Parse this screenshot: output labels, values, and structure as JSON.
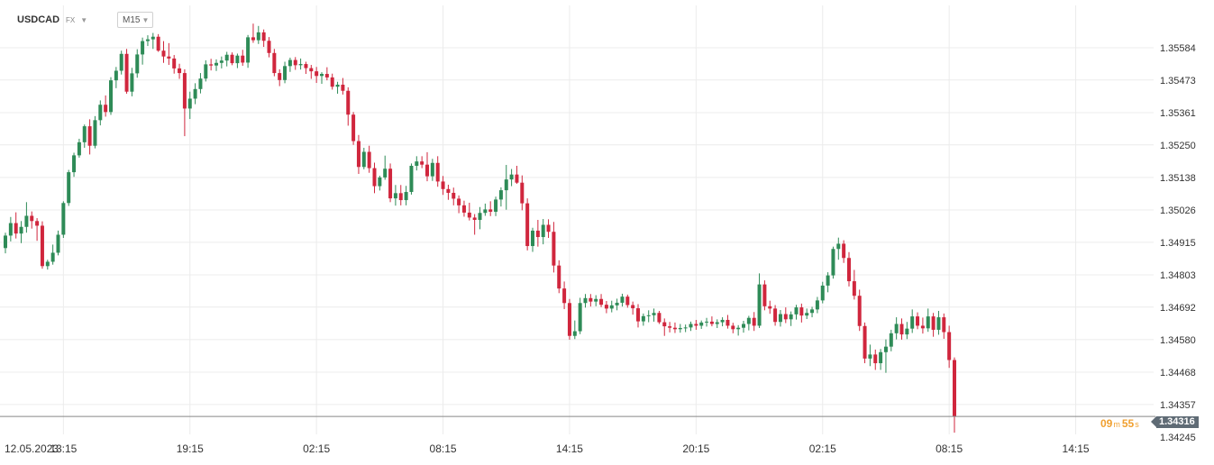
{
  "header": {
    "symbol": "USDCAD",
    "market": "FX",
    "timeframe": "M15"
  },
  "timer": {
    "minutes": "09",
    "minutes_unit": "m",
    "seconds": "55",
    "seconds_unit": "s"
  },
  "current_price_label": "1.34316",
  "colors": {
    "up": "#2e8b57",
    "down": "#d0263d",
    "grid": "#ececec",
    "axis_text": "#333333",
    "price_line": "#888888"
  },
  "chart_data": {
    "type": "candlestick",
    "title": "",
    "xlabel": "",
    "ylabel": "",
    "ylim": [
      1.3421,
      1.3566
    ],
    "y_ticks": [
      "1.35584",
      "1.35473",
      "1.35361",
      "1.35250",
      "1.35138",
      "1.35026",
      "1.34915",
      "1.34803",
      "1.34692",
      "1.34580",
      "1.34468",
      "1.34357",
      "1.34245"
    ],
    "x_ticks": [
      "12.05.2023",
      "13:15",
      "19:15",
      "02:15",
      "08:15",
      "14:15",
      "20:15",
      "02:15",
      "08:15",
      "14:15"
    ],
    "x_tick_index": [
      0,
      11,
      35,
      59,
      83,
      107,
      131,
      155,
      179,
      203
    ],
    "grid": true,
    "current_price": 1.34316,
    "candles": [
      [
        1.34895,
        1.34948,
        1.34877,
        1.34938
      ],
      [
        1.34938,
        1.35002,
        1.34918,
        1.34981
      ],
      [
        1.34981,
        1.35018,
        1.34928,
        1.34945
      ],
      [
        1.34945,
        1.34988,
        1.34912,
        1.34968
      ],
      [
        1.34968,
        1.35053,
        1.34948,
        1.35006
      ],
      [
        1.35006,
        1.35021,
        1.34962,
        1.34988
      ],
      [
        1.34988,
        1.34998,
        1.3492,
        1.34972
      ],
      [
        1.34972,
        1.34987,
        1.34824,
        1.34833
      ],
      [
        1.34833,
        1.34855,
        1.34821,
        1.34848
      ],
      [
        1.34848,
        1.34907,
        1.34838,
        1.34879
      ],
      [
        1.34879,
        1.34955,
        1.3487,
        1.34941
      ],
      [
        1.34941,
        1.35056,
        1.3493,
        1.3505
      ],
      [
        1.3505,
        1.35164,
        1.3504,
        1.35156
      ],
      [
        1.35156,
        1.35223,
        1.3514,
        1.35214
      ],
      [
        1.35214,
        1.35271,
        1.35206,
        1.35259
      ],
      [
        1.35259,
        1.3532,
        1.3524,
        1.35314
      ],
      [
        1.35314,
        1.35338,
        1.35217,
        1.35247
      ],
      [
        1.35247,
        1.35349,
        1.35238,
        1.35335
      ],
      [
        1.35335,
        1.35403,
        1.35317,
        1.35388
      ],
      [
        1.35388,
        1.3542,
        1.35347,
        1.35363
      ],
      [
        1.35363,
        1.35483,
        1.35353,
        1.35472
      ],
      [
        1.35472,
        1.35518,
        1.35445,
        1.35505
      ],
      [
        1.35505,
        1.35574,
        1.35492,
        1.35563
      ],
      [
        1.35563,
        1.3558,
        1.35426,
        1.35433
      ],
      [
        1.35433,
        1.35515,
        1.35417,
        1.35496
      ],
      [
        1.35496,
        1.35579,
        1.35481,
        1.35561
      ],
      [
        1.35561,
        1.35619,
        1.35526,
        1.35607
      ],
      [
        1.35607,
        1.35627,
        1.3559,
        1.35613
      ],
      [
        1.35613,
        1.35635,
        1.3558,
        1.35622
      ],
      [
        1.35622,
        1.35631,
        1.3557,
        1.35574
      ],
      [
        1.35574,
        1.35607,
        1.35532,
        1.35554
      ],
      [
        1.35554,
        1.356,
        1.35525,
        1.35547
      ],
      [
        1.35547,
        1.35559,
        1.35495,
        1.35513
      ],
      [
        1.35513,
        1.35529,
        1.35477,
        1.35497
      ],
      [
        1.35497,
        1.3551,
        1.3528,
        1.35375
      ],
      [
        1.35375,
        1.35433,
        1.35339,
        1.35409
      ],
      [
        1.35409,
        1.35462,
        1.3539,
        1.35442
      ],
      [
        1.35442,
        1.35497,
        1.35427,
        1.35478
      ],
      [
        1.35478,
        1.35541,
        1.35468,
        1.35527
      ],
      [
        1.35527,
        1.35546,
        1.35506,
        1.35523
      ],
      [
        1.35523,
        1.35544,
        1.35504,
        1.35532
      ],
      [
        1.35532,
        1.35554,
        1.35513,
        1.3554
      ],
      [
        1.3554,
        1.3557,
        1.3552,
        1.3556
      ],
      [
        1.3556,
        1.35568,
        1.35524,
        1.35531
      ],
      [
        1.35531,
        1.35564,
        1.35514,
        1.35557
      ],
      [
        1.35557,
        1.35577,
        1.35522,
        1.35533
      ],
      [
        1.35533,
        1.35628,
        1.35515,
        1.3562
      ],
      [
        1.3562,
        1.35667,
        1.35601,
        1.3561
      ],
      [
        1.3561,
        1.35659,
        1.35597,
        1.35637
      ],
      [
        1.35637,
        1.35647,
        1.35587,
        1.35608
      ],
      [
        1.35608,
        1.35621,
        1.35551,
        1.35566
      ],
      [
        1.35566,
        1.3558,
        1.35486,
        1.35497
      ],
      [
        1.35497,
        1.3551,
        1.35452,
        1.35473
      ],
      [
        1.35473,
        1.35536,
        1.35462,
        1.35521
      ],
      [
        1.35521,
        1.3555,
        1.35501,
        1.35542
      ],
      [
        1.35542,
        1.35552,
        1.35508,
        1.35524
      ],
      [
        1.35524,
        1.35547,
        1.35509,
        1.35528
      ],
      [
        1.35528,
        1.35536,
        1.35494,
        1.35514
      ],
      [
        1.35514,
        1.35525,
        1.35477,
        1.35503
      ],
      [
        1.35503,
        1.35518,
        1.35463,
        1.35487
      ],
      [
        1.35487,
        1.355,
        1.3546,
        1.35494
      ],
      [
        1.35494,
        1.35517,
        1.35472,
        1.35482
      ],
      [
        1.35482,
        1.35495,
        1.3544,
        1.3545
      ],
      [
        1.3545,
        1.35467,
        1.35426,
        1.35457
      ],
      [
        1.35457,
        1.3548,
        1.35423,
        1.35436
      ],
      [
        1.35436,
        1.35448,
        1.35316,
        1.35354
      ],
      [
        1.35354,
        1.35363,
        1.3525,
        1.35263
      ],
      [
        1.35263,
        1.35284,
        1.3515,
        1.35174
      ],
      [
        1.35174,
        1.3524,
        1.35166,
        1.35226
      ],
      [
        1.35226,
        1.35247,
        1.35154,
        1.3517
      ],
      [
        1.3517,
        1.35189,
        1.35084,
        1.35108
      ],
      [
        1.35108,
        1.35144,
        1.35093,
        1.35138
      ],
      [
        1.35138,
        1.35213,
        1.3513,
        1.35168
      ],
      [
        1.35168,
        1.35186,
        1.35053,
        1.35066
      ],
      [
        1.35066,
        1.35112,
        1.35041,
        1.35084
      ],
      [
        1.35084,
        1.35112,
        1.35042,
        1.3506
      ],
      [
        1.3506,
        1.35109,
        1.35042,
        1.35088
      ],
      [
        1.35088,
        1.35186,
        1.35079,
        1.35178
      ],
      [
        1.35178,
        1.35211,
        1.35162,
        1.35193
      ],
      [
        1.35193,
        1.35211,
        1.3517,
        1.35182
      ],
      [
        1.35182,
        1.35225,
        1.35125,
        1.35142
      ],
      [
        1.35142,
        1.35202,
        1.35126,
        1.35188
      ],
      [
        1.35188,
        1.35211,
        1.35106,
        1.35124
      ],
      [
        1.35124,
        1.35143,
        1.35078,
        1.35098
      ],
      [
        1.35098,
        1.35113,
        1.35061,
        1.35085
      ],
      [
        1.35085,
        1.35103,
        1.35042,
        1.35065
      ],
      [
        1.35065,
        1.35076,
        1.35015,
        1.35042
      ],
      [
        1.35042,
        1.35058,
        1.35003,
        1.35017
      ],
      [
        1.35017,
        1.35051,
        1.3499,
        1.35
      ],
      [
        1.35,
        1.35012,
        1.34941,
        1.34992
      ],
      [
        1.34992,
        1.35036,
        1.3496,
        1.35016
      ],
      [
        1.35016,
        1.35048,
        1.35006,
        1.35028
      ],
      [
        1.35028,
        1.35056,
        1.35005,
        1.3502
      ],
      [
        1.3502,
        1.35072,
        1.35005,
        1.35062
      ],
      [
        1.35062,
        1.35104,
        1.35038,
        1.35094
      ],
      [
        1.35094,
        1.35181,
        1.35027,
        1.35131
      ],
      [
        1.35131,
        1.35167,
        1.35108,
        1.35148
      ],
      [
        1.35148,
        1.35178,
        1.35116,
        1.3512
      ],
      [
        1.3512,
        1.35145,
        1.35025,
        1.35049
      ],
      [
        1.35049,
        1.35066,
        1.34887,
        1.34902
      ],
      [
        1.34902,
        1.34965,
        1.34882,
        1.34955
      ],
      [
        1.34955,
        1.34992,
        1.349,
        1.34933
      ],
      [
        1.34933,
        1.34995,
        1.34908,
        1.34975
      ],
      [
        1.34975,
        1.34994,
        1.3493,
        1.34951
      ],
      [
        1.34951,
        1.34985,
        1.34811,
        1.34835
      ],
      [
        1.34835,
        1.34853,
        1.3474,
        1.34756
      ],
      [
        1.34756,
        1.3478,
        1.34685,
        1.34706
      ],
      [
        1.34706,
        1.3472,
        1.3458,
        1.34593
      ],
      [
        1.34593,
        1.34646,
        1.34582,
        1.34609
      ],
      [
        1.34609,
        1.34724,
        1.34599,
        1.34706
      ],
      [
        1.34706,
        1.34737,
        1.3469,
        1.34723
      ],
      [
        1.34723,
        1.34737,
        1.34694,
        1.34711
      ],
      [
        1.34711,
        1.34733,
        1.34695,
        1.3472
      ],
      [
        1.3472,
        1.34737,
        1.34692,
        1.347
      ],
      [
        1.347,
        1.34713,
        1.34671,
        1.34687
      ],
      [
        1.34687,
        1.34714,
        1.34674,
        1.34698
      ],
      [
        1.34698,
        1.34721,
        1.34681,
        1.34707
      ],
      [
        1.34707,
        1.34738,
        1.34694,
        1.34728
      ],
      [
        1.34728,
        1.34735,
        1.3469,
        1.34699
      ],
      [
        1.34699,
        1.34711,
        1.34666,
        1.34688
      ],
      [
        1.34688,
        1.34702,
        1.34622,
        1.34643
      ],
      [
        1.34643,
        1.3467,
        1.34628,
        1.34661
      ],
      [
        1.34661,
        1.34681,
        1.3464,
        1.34664
      ],
      [
        1.34664,
        1.34687,
        1.34642,
        1.34672
      ],
      [
        1.34672,
        1.34679,
        1.34634,
        1.3464
      ],
      [
        1.3464,
        1.34653,
        1.34593,
        1.34626
      ],
      [
        1.34626,
        1.34641,
        1.34605,
        1.34621
      ],
      [
        1.34621,
        1.34639,
        1.34603,
        1.34616
      ],
      [
        1.34616,
        1.34634,
        1.34604,
        1.3462
      ],
      [
        1.3462,
        1.34632,
        1.34606,
        1.34622
      ],
      [
        1.34622,
        1.34642,
        1.3461,
        1.34634
      ],
      [
        1.34634,
        1.34648,
        1.34614,
        1.34628
      ],
      [
        1.34628,
        1.34646,
        1.34617,
        1.34639
      ],
      [
        1.34639,
        1.34655,
        1.34625,
        1.34642
      ],
      [
        1.34642,
        1.3466,
        1.34626,
        1.34634
      ],
      [
        1.34634,
        1.3465,
        1.3462,
        1.3464
      ],
      [
        1.3464,
        1.34657,
        1.34626,
        1.34648
      ],
      [
        1.34648,
        1.34665,
        1.34618,
        1.34628
      ],
      [
        1.34628,
        1.34638,
        1.34602,
        1.34616
      ],
      [
        1.34616,
        1.3463,
        1.34594,
        1.34621
      ],
      [
        1.34621,
        1.34645,
        1.34604,
        1.34634
      ],
      [
        1.34634,
        1.34662,
        1.34612,
        1.34655
      ],
      [
        1.34655,
        1.34675,
        1.3461,
        1.34628
      ],
      [
        1.34628,
        1.34808,
        1.3462,
        1.3477
      ],
      [
        1.3477,
        1.34784,
        1.34681,
        1.34695
      ],
      [
        1.34695,
        1.34714,
        1.34669,
        1.34687
      ],
      [
        1.34687,
        1.34699,
        1.34628,
        1.34641
      ],
      [
        1.34641,
        1.34682,
        1.34625,
        1.34668
      ],
      [
        1.34668,
        1.34691,
        1.34637,
        1.3465
      ],
      [
        1.3465,
        1.34677,
        1.34627,
        1.34667
      ],
      [
        1.34667,
        1.347,
        1.34649,
        1.34691
      ],
      [
        1.34691,
        1.34704,
        1.34639,
        1.34663
      ],
      [
        1.34663,
        1.34687,
        1.34651,
        1.34672
      ],
      [
        1.34672,
        1.34693,
        1.34657,
        1.34684
      ],
      [
        1.34684,
        1.34727,
        1.34671,
        1.34715
      ],
      [
        1.34715,
        1.34779,
        1.34705,
        1.34766
      ],
      [
        1.34766,
        1.34812,
        1.34743,
        1.34801
      ],
      [
        1.34801,
        1.349,
        1.3479,
        1.34892
      ],
      [
        1.34892,
        1.34931,
        1.34855,
        1.3491
      ],
      [
        1.3491,
        1.34922,
        1.34844,
        1.34861
      ],
      [
        1.34861,
        1.34881,
        1.34763,
        1.34781
      ],
      [
        1.34781,
        1.3482,
        1.34718,
        1.34731
      ],
      [
        1.34731,
        1.34752,
        1.3461,
        1.34627
      ],
      [
        1.34627,
        1.34639,
        1.34499,
        1.34515
      ],
      [
        1.34515,
        1.34563,
        1.34489,
        1.34529
      ],
      [
        1.34529,
        1.34546,
        1.34476,
        1.34499
      ],
      [
        1.34499,
        1.34548,
        1.34476,
        1.34537
      ],
      [
        1.34537,
        1.34581,
        1.34466,
        1.34556
      ],
      [
        1.34556,
        1.34614,
        1.3454,
        1.34602
      ],
      [
        1.34602,
        1.34657,
        1.34581,
        1.34634
      ],
      [
        1.34634,
        1.34653,
        1.3458,
        1.34598
      ],
      [
        1.34598,
        1.34641,
        1.34582,
        1.34618
      ],
      [
        1.34618,
        1.34684,
        1.34603,
        1.3466
      ],
      [
        1.3466,
        1.34674,
        1.34616,
        1.34628
      ],
      [
        1.34628,
        1.34656,
        1.34601,
        1.34619
      ],
      [
        1.34619,
        1.34687,
        1.34607,
        1.3466
      ],
      [
        1.3466,
        1.34672,
        1.3459,
        1.34614
      ],
      [
        1.34614,
        1.34679,
        1.34597,
        1.34657
      ],
      [
        1.34657,
        1.3467,
        1.34583,
        1.34606
      ],
      [
        1.34606,
        1.34628,
        1.34483,
        1.3451
      ],
      [
        1.3451,
        1.34519,
        1.3426,
        1.34316
      ]
    ]
  }
}
